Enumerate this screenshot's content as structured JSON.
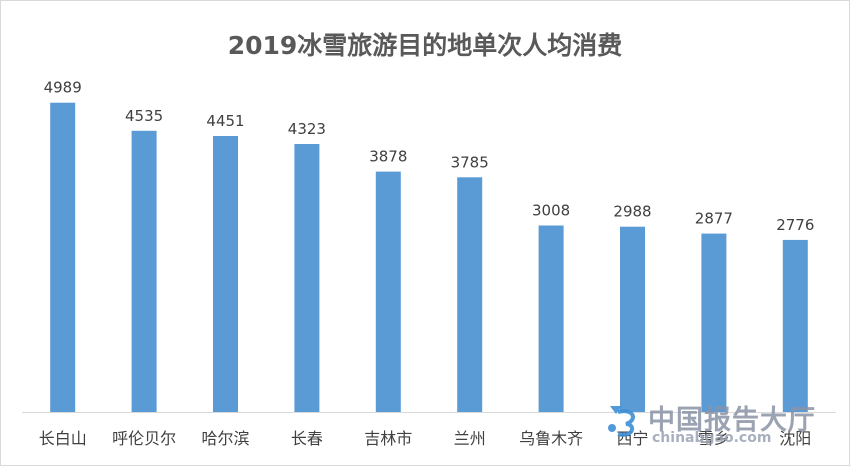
{
  "chart_data": {
    "type": "bar",
    "title": "2019冰雪旅游目的地单次人均消费",
    "categories": [
      "长白山",
      "呼伦贝尔",
      "哈尔滨",
      "长春",
      "吉林市",
      "兰州",
      "乌鲁木齐",
      "西宁",
      "雪乡",
      "沈阳"
    ],
    "values": [
      4989,
      4535,
      4451,
      4323,
      3878,
      3785,
      3008,
      2988,
      2877,
      2776
    ],
    "ylim": [
      0,
      5000
    ],
    "grid": false,
    "legend": "none",
    "bar_color": "#5b9bd5"
  },
  "watermark": {
    "logo_text": "中国报告大厅",
    "url_text": "chinabgao.com"
  }
}
